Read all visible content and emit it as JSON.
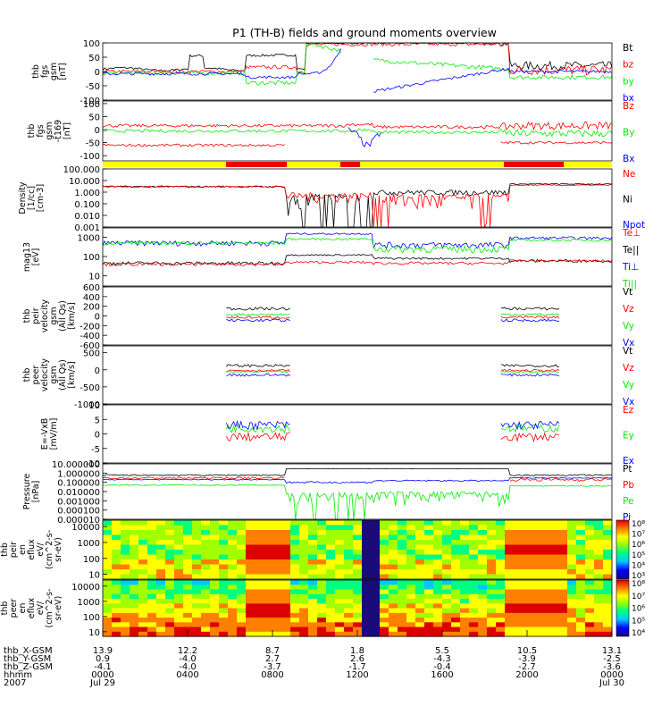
{
  "title": "P1 (TH-B) fields and ground moments overview",
  "colors": {
    "black": "#000000",
    "red": "#ff0000",
    "green": "#00ee00",
    "blue": "#0000ff",
    "yellow": "#ffff00",
    "bar_red": "#ee0000"
  },
  "chart_data": [
    {
      "type": "line",
      "ylabel_lines": [
        "thb",
        "fgs",
        "gsm",
        "[nT]"
      ],
      "ylim": [
        -100,
        100
      ],
      "yticks": [
        "100",
        "50",
        "0",
        "-50",
        "-100"
      ],
      "tickvals": [
        100,
        50,
        0,
        -50,
        -100
      ],
      "legend": [
        "Bt",
        "bz",
        "by",
        "bx"
      ],
      "legend_colors": [
        "#000000",
        "#ff0000",
        "#00ee00",
        "#0000ff"
      ]
    },
    {
      "type": "line",
      "ylabel_lines": [
        "thb",
        "fgs",
        "gsm",
        "-t169",
        "[nT]"
      ],
      "ylim": [
        -120,
        110
      ],
      "yticks": [
        "100",
        "50",
        "0",
        "-50",
        "-100"
      ],
      "tickvals": [
        100,
        50,
        0,
        -50,
        -100
      ],
      "legend": [
        "Bz",
        "By",
        "Bx"
      ],
      "legend_colors": [
        "#ff0000",
        "#00ee00",
        "#0000ff"
      ]
    },
    {
      "type": "line",
      "scale": "log",
      "ylabel_lines": [
        "Density",
        "[1/cc]",
        "[cm-3]"
      ],
      "ylim": [
        0.001,
        100
      ],
      "yticks": [
        "100.000",
        "10.000",
        "1.000",
        "0.100",
        "0.010",
        "0.001"
      ],
      "tickvals": [
        100,
        10,
        1,
        0.1,
        0.01,
        0.001
      ],
      "legend": [
        "Ne",
        "Ni",
        "Npot"
      ],
      "legend_colors": [
        "#ff0000",
        "#000000",
        "#0000ff"
      ]
    },
    {
      "type": "line",
      "scale": "log",
      "ylabel_lines": [
        "mag13",
        "[eV]"
      ],
      "ylim": [
        3,
        3000
      ],
      "yticks": [
        "1000",
        "100",
        "10"
      ],
      "tickvals": [
        1000,
        100,
        10
      ],
      "legend": [
        "Te⊥",
        "Te||",
        "Ti⊥",
        "Ti||"
      ],
      "legend_colors": [
        "#ff0000",
        "#000000",
        "#0000ff",
        "#00ee00"
      ]
    },
    {
      "type": "line",
      "ylabel_lines": [
        "thb",
        "peir",
        "velocity",
        "gsm",
        "(All Qs)",
        "[km/s]"
      ],
      "ylim": [
        -600,
        600
      ],
      "yticks": [
        "600",
        "400",
        "200",
        "0",
        "-200",
        "-400",
        "-600"
      ],
      "tickvals": [
        600,
        400,
        200,
        0,
        -200,
        -400,
        -600
      ],
      "legend": [
        "Vt",
        "Vz",
        "Vy",
        "Vx"
      ],
      "legend_colors": [
        "#000000",
        "#ff0000",
        "#00ee00",
        "#0000ff"
      ]
    },
    {
      "type": "line",
      "ylabel_lines": [
        "thb",
        "peer",
        "velocity",
        "gsm",
        "(All Qs)",
        "[km/s]"
      ],
      "ylim": [
        -1000,
        700
      ],
      "yticks": [
        "500",
        "0",
        "-500",
        "-1000"
      ],
      "tickvals": [
        500,
        0,
        -500,
        -1000
      ],
      "legend": [
        "Vt",
        "Vz",
        "Vy",
        "Vx"
      ],
      "legend_colors": [
        "#000000",
        "#ff0000",
        "#00ee00",
        "#0000ff"
      ]
    },
    {
      "type": "line",
      "ylabel_lines": [
        "E=-VxB",
        "[mV/m]"
      ],
      "ylim": [
        -10,
        10
      ],
      "yticks": [
        "10",
        "5",
        "0",
        "-5",
        "-10"
      ],
      "tickvals": [
        10,
        5,
        0,
        -5,
        -10
      ],
      "legend": [
        "Ez",
        "Ey",
        "Ex"
      ],
      "legend_colors": [
        "#ff0000",
        "#00ee00",
        "#0000ff"
      ]
    },
    {
      "type": "line",
      "scale": "log",
      "ylabel_lines": [
        "Pressure",
        "[nPa]"
      ],
      "ylim": [
        1e-05,
        10
      ],
      "yticks": [
        "10.000000",
        "1.000000",
        "0.100000",
        "0.010000",
        "0.001000",
        "0.000100",
        "0.000010"
      ],
      "tickvals": [
        10,
        1,
        0.1,
        0.01,
        0.001,
        0.0001,
        1e-05
      ],
      "legend": [
        "Pt",
        "Pb",
        "Pe",
        "Pi"
      ],
      "legend_colors": [
        "#000000",
        "#ff0000",
        "#00ee00",
        "#0000ff"
      ]
    },
    {
      "type": "heatmap",
      "scale": "log",
      "ylabel_lines": [
        "thb",
        "peir",
        "en",
        "eflux",
        "eV/",
        "(cm^2-s-",
        "sr-eV)"
      ],
      "ylim": [
        5,
        25000
      ],
      "yticks": [
        "10000",
        "1000",
        "100",
        "10"
      ],
      "tickvals": [
        10000,
        1000,
        100,
        10
      ],
      "colorbar_ticks": [
        "10⁸",
        "10⁷",
        "10⁶",
        "10⁵",
        "10⁴",
        "10³"
      ]
    },
    {
      "type": "heatmap",
      "scale": "log",
      "ylabel_lines": [
        "thb",
        "peer",
        "en",
        "eflux",
        "eV/",
        "(cm^2-s-",
        "sr-eV)"
      ],
      "ylim": [
        5,
        25000
      ],
      "yticks": [
        "10000",
        "1000",
        "100",
        "10"
      ],
      "tickvals": [
        10000,
        1000,
        100,
        10
      ],
      "colorbar_ticks": [
        "10⁸",
        "10⁷",
        "10⁶",
        "10⁵",
        "10⁴"
      ]
    }
  ],
  "time_axis": {
    "row_labels": [
      "thb_X-GSM",
      "thb_Y-GSM",
      "thb_Z-GSM",
      "hhmm",
      "2007"
    ],
    "columns": [
      [
        "13.9",
        "0.9",
        "-4.1",
        "0000",
        "Jul 29"
      ],
      [
        "12.2",
        "-4.0",
        "-4.0",
        "0400",
        ""
      ],
      [
        "8.7",
        "2.7",
        "-3.7",
        "0800",
        ""
      ],
      [
        "1.8",
        "2.6",
        "-1.7",
        "1200",
        ""
      ],
      [
        "5.5",
        "-4.3",
        "-0.4",
        "1600",
        ""
      ],
      [
        "10.5",
        "-3.9",
        "-2.7",
        "2000",
        ""
      ],
      [
        "13.1",
        "-2.5",
        "-3.6",
        "0000",
        "Jul 30"
      ]
    ]
  }
}
